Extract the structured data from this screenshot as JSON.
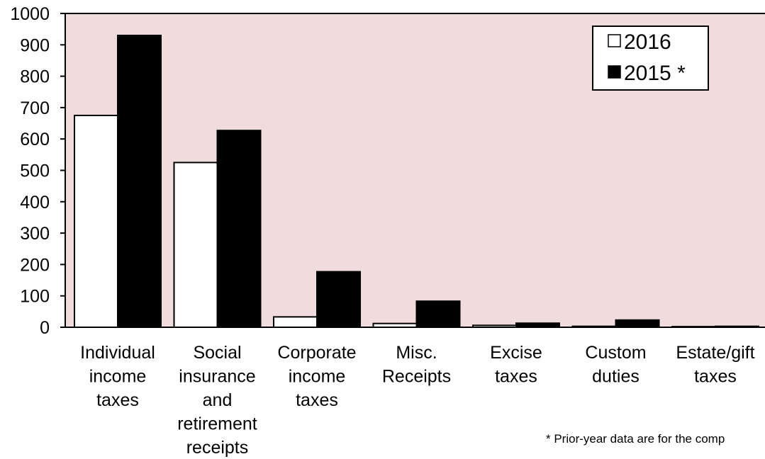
{
  "chart_data": {
    "type": "bar",
    "title": "",
    "xlabel": "",
    "ylabel": "",
    "ylim": [
      0,
      1000
    ],
    "yticks": [
      0,
      100,
      200,
      300,
      400,
      500,
      600,
      700,
      800,
      900,
      1000
    ],
    "categories": [
      [
        "Individual",
        "income",
        "taxes"
      ],
      [
        "Social",
        "insurance",
        "and",
        "retirement",
        "receipts"
      ],
      [
        "Corporate",
        "income",
        "taxes"
      ],
      [
        "Misc.",
        "Receipts"
      ],
      [
        "Excise",
        "taxes"
      ],
      [
        "Custom",
        "duties"
      ],
      [
        "Estate/gift",
        "taxes"
      ]
    ],
    "series": [
      {
        "name": "2016",
        "legend_label": "2016",
        "color": "#ffffff",
        "values": [
          675,
          525,
          33,
          12,
          6,
          3,
          2
        ]
      },
      {
        "name": "2015",
        "legend_label": "2015 *",
        "color": "#000000",
        "values": [
          930,
          627,
          177,
          83,
          13,
          23,
          3
        ]
      }
    ],
    "legend_position": "top-right",
    "grid": false,
    "plot_background": "#f0dcdc",
    "footnote": "* Prior-year data are for the comp"
  }
}
